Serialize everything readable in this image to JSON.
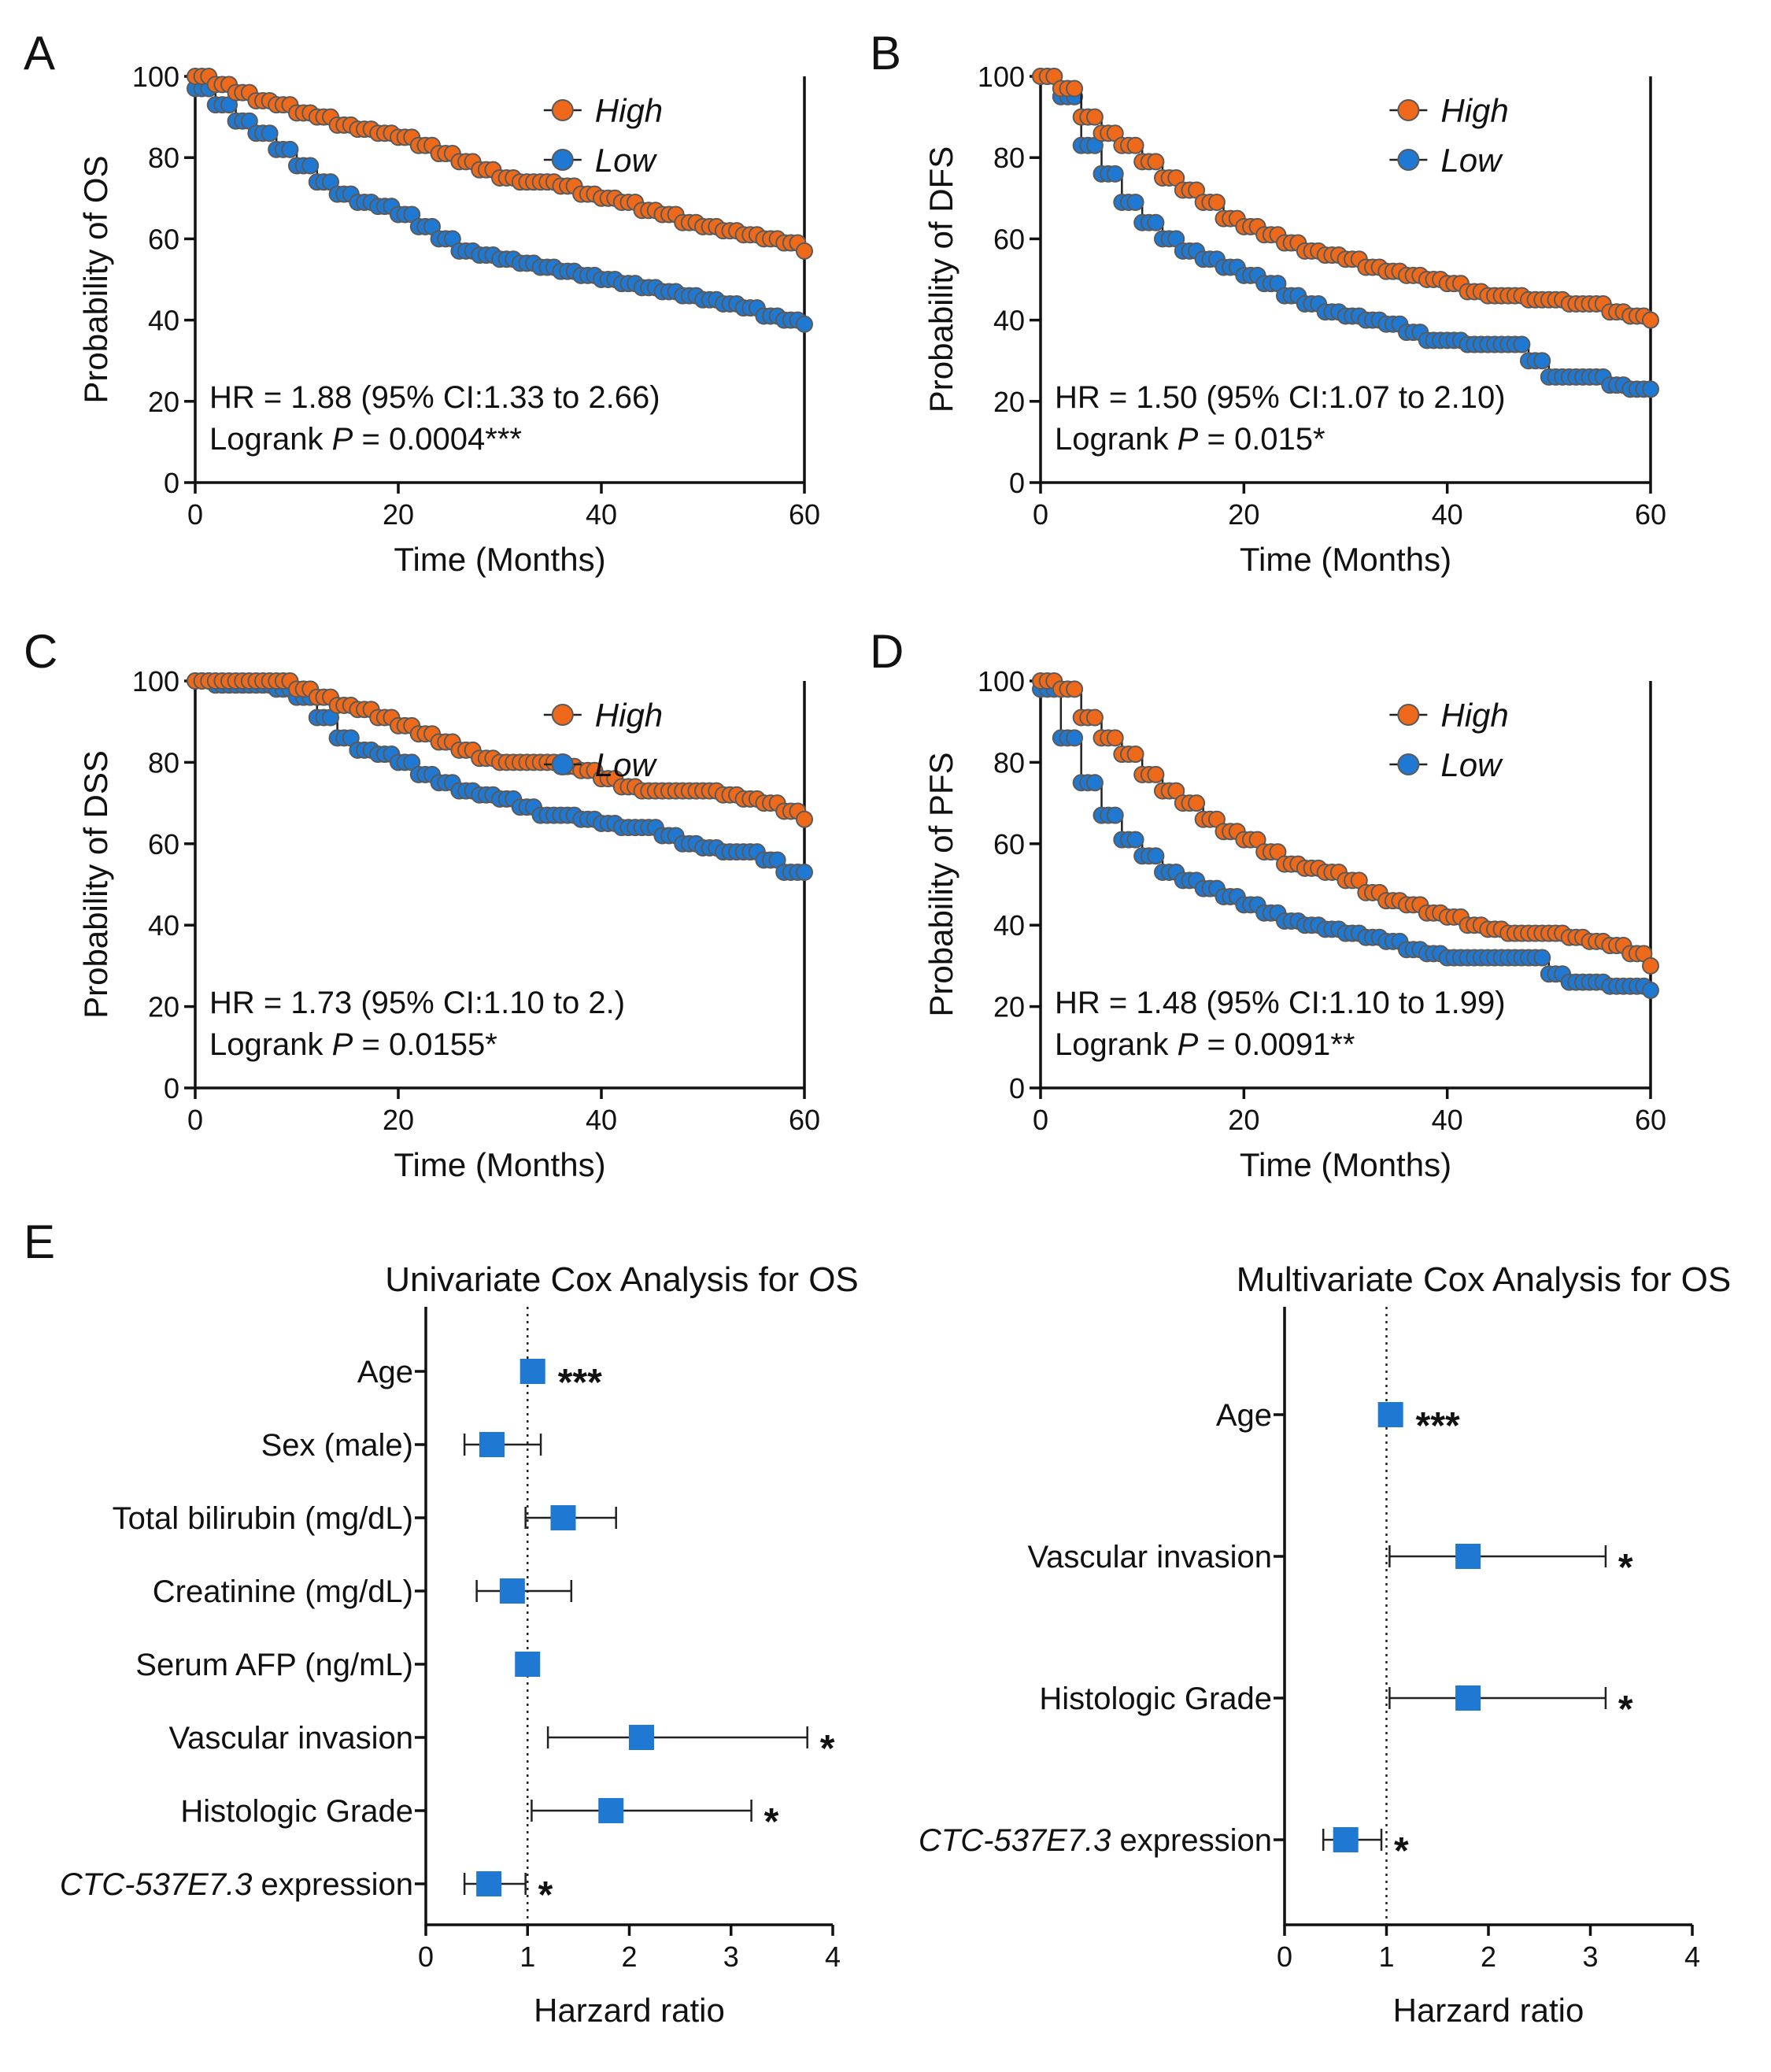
{
  "colors": {
    "high": "#ee6a1a",
    "low": "#1f78d1",
    "marker_edge": "#5a5a5a",
    "forest_marker": "#1f78d1"
  },
  "chart_data": [
    {
      "panel": "A",
      "type": "line",
      "subtype": "kaplan-meier",
      "ylabel": "Probability of OS",
      "xlabel": "Time (Months)",
      "xlim": [
        0,
        60
      ],
      "ylim": [
        0,
        100
      ],
      "xticks": [
        "0",
        "20",
        "40",
        "60"
      ],
      "yticks": [
        "0",
        "20",
        "40",
        "60",
        "80",
        "100"
      ],
      "legend": [
        "High",
        "Low"
      ],
      "annotation": {
        "line1": "HR = 1.88 (95% CI:1.33 to 2.66)",
        "prefix": "Logrank ",
        "p": "P",
        "suffix": " = 0.0004***"
      },
      "series": [
        {
          "name": "High",
          "x": [
            0,
            2,
            4,
            6,
            8,
            10,
            12,
            14,
            16,
            18,
            20,
            22,
            24,
            26,
            28,
            30,
            32,
            34,
            36,
            38,
            40,
            42,
            44,
            46,
            48,
            50,
            52,
            54,
            56,
            58,
            60
          ],
          "y": [
            100,
            98,
            96,
            94,
            93,
            91,
            90,
            88,
            87,
            86,
            85,
            83,
            81,
            79,
            77,
            75,
            74,
            74,
            73,
            71,
            70,
            69,
            67,
            66,
            64,
            63,
            62,
            61,
            60,
            59,
            57
          ]
        },
        {
          "name": "Low",
          "x": [
            0,
            2,
            4,
            6,
            8,
            10,
            12,
            14,
            16,
            18,
            20,
            22,
            24,
            26,
            28,
            30,
            32,
            34,
            36,
            38,
            40,
            42,
            44,
            46,
            48,
            50,
            52,
            54,
            56,
            58,
            60
          ],
          "y": [
            97,
            93,
            89,
            86,
            82,
            78,
            74,
            71,
            69,
            68,
            66,
            63,
            60,
            57,
            56,
            55,
            54,
            53,
            52,
            51,
            50,
            49,
            48,
            47,
            46,
            45,
            44,
            43,
            41,
            40,
            39
          ]
        }
      ]
    },
    {
      "panel": "B",
      "type": "line",
      "subtype": "kaplan-meier",
      "ylabel": "Probability of DFS",
      "xlabel": "Time (Months)",
      "xlim": [
        0,
        60
      ],
      "ylim": [
        0,
        100
      ],
      "xticks": [
        "0",
        "20",
        "40",
        "60"
      ],
      "yticks": [
        "0",
        "20",
        "40",
        "60",
        "80",
        "100"
      ],
      "legend": [
        "High",
        "Low"
      ],
      "annotation": {
        "line1": "HR = 1.50 (95% CI:1.07 to 2.10)",
        "prefix": "Logrank ",
        "p": "P",
        "suffix": " = 0.015*"
      },
      "series": [
        {
          "name": "High",
          "x": [
            0,
            2,
            4,
            6,
            8,
            10,
            12,
            14,
            16,
            18,
            20,
            22,
            24,
            26,
            28,
            30,
            32,
            34,
            36,
            38,
            40,
            42,
            44,
            46,
            48,
            50,
            52,
            54,
            56,
            58,
            60
          ],
          "y": [
            100,
            97,
            90,
            86,
            83,
            79,
            75,
            72,
            69,
            65,
            63,
            61,
            59,
            57,
            56,
            55,
            53,
            52,
            51,
            50,
            49,
            47,
            46,
            46,
            45,
            45,
            44,
            44,
            42,
            41,
            40
          ]
        },
        {
          "name": "Low",
          "x": [
            0,
            2,
            4,
            6,
            8,
            10,
            12,
            14,
            16,
            18,
            20,
            22,
            24,
            26,
            28,
            30,
            32,
            34,
            36,
            38,
            40,
            42,
            44,
            46,
            48,
            50,
            52,
            54,
            56,
            58,
            60
          ],
          "y": [
            100,
            95,
            83,
            76,
            69,
            64,
            60,
            57,
            55,
            53,
            51,
            49,
            46,
            44,
            42,
            41,
            40,
            39,
            37,
            35,
            35,
            34,
            34,
            34,
            30,
            26,
            26,
            26,
            24,
            23,
            23
          ]
        }
      ]
    },
    {
      "panel": "C",
      "type": "line",
      "subtype": "kaplan-meier",
      "ylabel": "Probability of DSS",
      "xlabel": "Time (Months)",
      "xlim": [
        0,
        60
      ],
      "ylim": [
        0,
        100
      ],
      "xticks": [
        "0",
        "20",
        "40",
        "60"
      ],
      "yticks": [
        "0",
        "20",
        "40",
        "60",
        "80",
        "100"
      ],
      "legend": [
        "High",
        "Low"
      ],
      "annotation": {
        "line1": "HR = 1.73 (95% CI:1.10 to 2.)",
        "prefix": "Logrank ",
        "p": "P",
        "suffix": " = 0.0155*"
      },
      "series": [
        {
          "name": "High",
          "x": [
            0,
            2,
            4,
            6,
            8,
            10,
            12,
            14,
            16,
            18,
            20,
            22,
            24,
            26,
            28,
            30,
            32,
            34,
            36,
            38,
            40,
            42,
            44,
            46,
            48,
            50,
            52,
            54,
            56,
            58,
            60
          ],
          "y": [
            100,
            100,
            100,
            100,
            100,
            98,
            96,
            94,
            93,
            91,
            89,
            87,
            85,
            83,
            81,
            80,
            80,
            80,
            79,
            78,
            76,
            74,
            73,
            73,
            73,
            73,
            72,
            71,
            70,
            68,
            66
          ]
        },
        {
          "name": "Low",
          "x": [
            0,
            2,
            4,
            6,
            8,
            10,
            12,
            14,
            16,
            18,
            20,
            22,
            24,
            26,
            28,
            30,
            32,
            34,
            36,
            38,
            40,
            42,
            44,
            46,
            48,
            50,
            52,
            54,
            56,
            58,
            60
          ],
          "y": [
            100,
            99,
            99,
            99,
            98,
            96,
            91,
            86,
            83,
            82,
            80,
            77,
            75,
            73,
            72,
            71,
            69,
            67,
            67,
            66,
            65,
            64,
            64,
            62,
            60,
            59,
            58,
            58,
            56,
            53,
            53
          ]
        }
      ]
    },
    {
      "panel": "D",
      "type": "line",
      "subtype": "kaplan-meier",
      "ylabel": "Probability of PFS",
      "xlabel": "Time (Months)",
      "xlim": [
        0,
        60
      ],
      "ylim": [
        0,
        100
      ],
      "xticks": [
        "0",
        "20",
        "40",
        "60"
      ],
      "yticks": [
        "0",
        "20",
        "40",
        "60",
        "80",
        "100"
      ],
      "legend": [
        "High",
        "Low"
      ],
      "annotation": {
        "line1": "HR = 1.48 (95% CI:1.10 to 1.99)",
        "prefix": "Logrank ",
        "p": "P",
        "suffix": " = 0.0091**"
      },
      "series": [
        {
          "name": "High",
          "x": [
            0,
            2,
            4,
            6,
            8,
            10,
            12,
            14,
            16,
            18,
            20,
            22,
            24,
            26,
            28,
            30,
            32,
            34,
            36,
            38,
            40,
            42,
            44,
            46,
            48,
            50,
            52,
            54,
            56,
            58,
            60
          ],
          "y": [
            100,
            98,
            91,
            86,
            82,
            77,
            73,
            70,
            66,
            63,
            61,
            58,
            55,
            54,
            53,
            51,
            48,
            46,
            45,
            43,
            42,
            40,
            39,
            38,
            38,
            38,
            37,
            36,
            35,
            33,
            30
          ]
        },
        {
          "name": "Low",
          "x": [
            0,
            2,
            4,
            6,
            8,
            10,
            12,
            14,
            16,
            18,
            20,
            22,
            24,
            26,
            28,
            30,
            32,
            34,
            36,
            38,
            40,
            42,
            44,
            46,
            48,
            50,
            52,
            54,
            56,
            58,
            60
          ],
          "y": [
            98,
            86,
            75,
            67,
            61,
            57,
            53,
            51,
            49,
            47,
            45,
            43,
            41,
            40,
            39,
            38,
            37,
            36,
            34,
            33,
            32,
            32,
            32,
            32,
            32,
            28,
            26,
            26,
            25,
            25,
            24
          ]
        }
      ]
    },
    {
      "panel": "E-left",
      "type": "forest",
      "title": "Univariate Cox Analysis for OS",
      "xlabel": "Harzard ratio",
      "xlim": [
        0,
        4
      ],
      "xticks": [
        "0",
        "1",
        "2",
        "3",
        "4"
      ],
      "reference": 1,
      "rows": [
        {
          "label": "Age",
          "hr": 1.05,
          "lo": 1.02,
          "hi": 1.08,
          "stars": "***"
        },
        {
          "label": "Sex (male)",
          "hr": 0.65,
          "lo": 0.38,
          "hi": 1.13,
          "stars": ""
        },
        {
          "label": "Total bilirubin (mg/dL)",
          "hr": 1.35,
          "lo": 0.98,
          "hi": 1.87,
          "stars": ""
        },
        {
          "label": "Creatinine (mg/dL)",
          "hr": 0.85,
          "lo": 0.5,
          "hi": 1.43,
          "stars": ""
        },
        {
          "label": "Serum AFP (ng/mL)",
          "hr": 1.0,
          "lo": 1.0,
          "hi": 1.0,
          "stars": ""
        },
        {
          "label": "Vascular invasion",
          "hr": 2.12,
          "lo": 1.2,
          "hi": 3.75,
          "stars": "*"
        },
        {
          "label": "Histologic Grade",
          "hr": 1.82,
          "lo": 1.04,
          "hi": 3.2,
          "stars": "*"
        },
        {
          "label": "CTC-537E7.3",
          "label_suffix": " expression",
          "hr": 0.62,
          "lo": 0.38,
          "hi": 0.98,
          "stars": "*"
        }
      ]
    },
    {
      "panel": "E-right",
      "type": "forest",
      "title": "Multivariate Cox Analysis for OS",
      "xlabel": "Harzard ratio",
      "xlim": [
        0,
        4
      ],
      "xticks": [
        "0",
        "1",
        "2",
        "3",
        "4"
      ],
      "reference": 1,
      "rows": [
        {
          "label": "Age",
          "hr": 1.04,
          "lo": 1.02,
          "hi": 1.07,
          "stars": "***"
        },
        {
          "label": "Vascular invasion",
          "hr": 1.8,
          "lo": 1.03,
          "hi": 3.15,
          "stars": "*"
        },
        {
          "label": "Histologic Grade",
          "hr": 1.8,
          "lo": 1.03,
          "hi": 3.15,
          "stars": "*"
        },
        {
          "label": "CTC-537E7.3",
          "label_suffix": " expression",
          "hr": 0.6,
          "lo": 0.38,
          "hi": 0.95,
          "stars": "*"
        }
      ]
    }
  ],
  "panel_letters": [
    "A",
    "B",
    "C",
    "D",
    "E"
  ]
}
